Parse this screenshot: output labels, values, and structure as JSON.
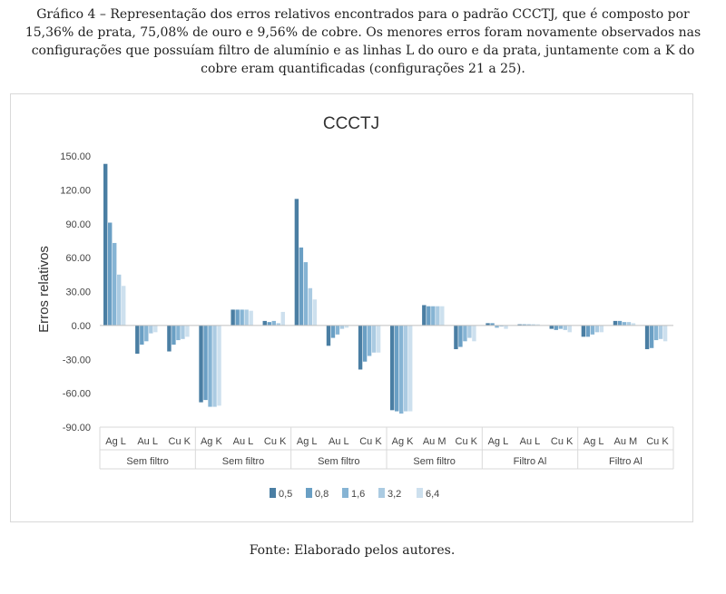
{
  "caption": "Gráfico 4 – Representação dos erros relativos encontrados para o padrão CCCTJ, que é composto por 15,36% de prata, 75,08% de ouro e 9,56% de cobre. Os menores erros foram novamente observados nas configurações que possuíam filtro de alumínio e as linhas L do ouro e da prata, juntamente com a K do cobre eram quantificadas (configurações 21 a 25).",
  "source": "Fonte: Elaborado pelos autores.",
  "chart_data": {
    "type": "bar",
    "title": "CCCTJ",
    "ylabel": "Erros relativos",
    "xlabel": "",
    "ylim": [
      -90,
      150
    ],
    "yticks": [
      "150.00",
      "120.00",
      "90.00",
      "60.00",
      "30.00",
      "0.00",
      "-30.00",
      "-60.00",
      "-90.00"
    ],
    "grid": false,
    "legend_position": "bottom",
    "groups": [
      {
        "label": "Sem filtro",
        "categories": [
          "Ag L",
          "Au L",
          "Cu K"
        ]
      },
      {
        "label": "Sem filtro",
        "categories": [
          "Ag K",
          "Au L",
          "Cu K"
        ]
      },
      {
        "label": "Sem filtro",
        "categories": [
          "Ag L",
          "Au L",
          "Cu K"
        ]
      },
      {
        "label": "Sem filtro",
        "categories": [
          "Ag K",
          "Au M",
          "Cu K"
        ]
      },
      {
        "label": "Filtro Al",
        "categories": [
          "Ag L",
          "Au L",
          "Cu K"
        ]
      },
      {
        "label": "Filtro Al",
        "categories": [
          "Ag L",
          "Au M",
          "Cu K"
        ]
      }
    ],
    "series": [
      {
        "name": "0,5",
        "color": "#4a7ea3",
        "values": [
          143,
          -25,
          -23,
          -68,
          14,
          4,
          112,
          -18,
          -39,
          -75,
          18,
          -21,
          2,
          1,
          -3,
          -10,
          4,
          -21
        ]
      },
      {
        "name": "0,8",
        "color": "#6a9fc4",
        "values": [
          91,
          -17,
          -17,
          -66,
          14,
          3,
          69,
          -11,
          -32,
          -76,
          17,
          -19,
          2,
          1,
          -4,
          -10,
          4,
          -20
        ]
      },
      {
        "name": "1,6",
        "color": "#86b4d4",
        "values": [
          73,
          -14,
          -13,
          -72,
          14,
          4,
          56,
          -8,
          -27,
          -78,
          17,
          -14,
          -2,
          1,
          -3,
          -8,
          3,
          -13
        ]
      },
      {
        "name": "3,2",
        "color": "#abcbe2",
        "values": [
          45,
          -7,
          -12,
          -72,
          14,
          2,
          33,
          -3,
          -24,
          -76,
          17,
          -11,
          -1,
          1,
          -4,
          -6,
          3,
          -12
        ]
      },
      {
        "name": "6,4",
        "color": "#cde0ee",
        "values": [
          35,
          -6,
          -10,
          -71,
          13,
          12,
          23,
          -2,
          -24,
          -76,
          17,
          -14,
          -3,
          1,
          -6,
          -6,
          2,
          -14
        ]
      }
    ]
  }
}
